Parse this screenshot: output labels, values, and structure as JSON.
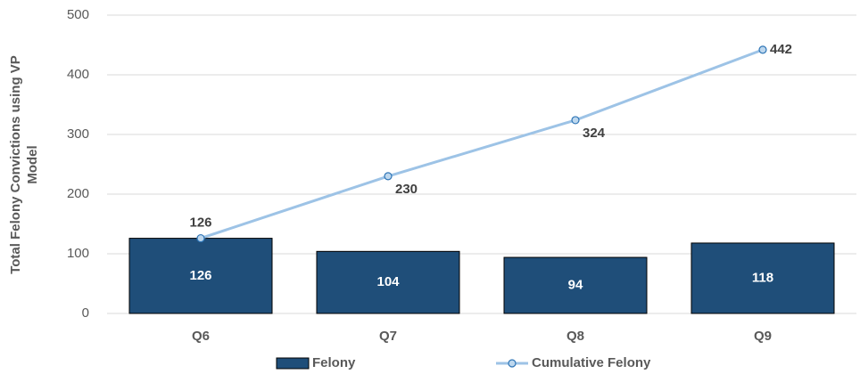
{
  "chart_data": {
    "type": "bar",
    "y_label": [
      "Total Felony Convictions using VP",
      "Model"
    ],
    "categories": [
      "Q6",
      "Q7",
      "Q8",
      "Q9"
    ],
    "series": [
      {
        "name": "Felony",
        "color": "#1f4e79",
        "type": "bar",
        "values": [
          126,
          104,
          94,
          118
        ]
      },
      {
        "name": "Cumulative Felony",
        "color": "#9dc3e6",
        "type": "line",
        "values": [
          126,
          230,
          324,
          442
        ]
      }
    ],
    "ylim": [
      0,
      500
    ],
    "yticks": [
      0,
      100,
      200,
      300,
      400,
      500
    ],
    "grid": true,
    "legend": "bottom"
  }
}
